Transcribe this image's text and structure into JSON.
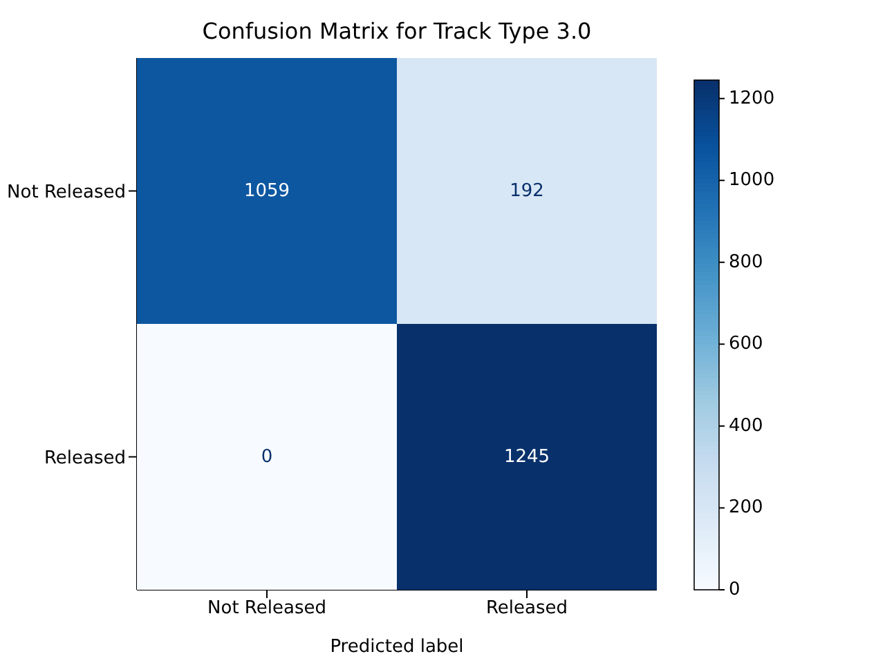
{
  "chart_data": {
    "type": "heatmap",
    "title": "Confusion Matrix for Track Type 3.0",
    "xlabel": "Predicted label",
    "categories": [
      "Not Released",
      "Released"
    ],
    "y_categories": [
      "Not Released",
      "Released"
    ],
    "cells": [
      [
        1059,
        192
      ],
      [
        0,
        1245
      ]
    ],
    "clim": [
      0,
      1245
    ],
    "cticks": [
      0,
      200,
      400,
      600,
      800,
      1000,
      1200
    ],
    "data_labels": true
  }
}
